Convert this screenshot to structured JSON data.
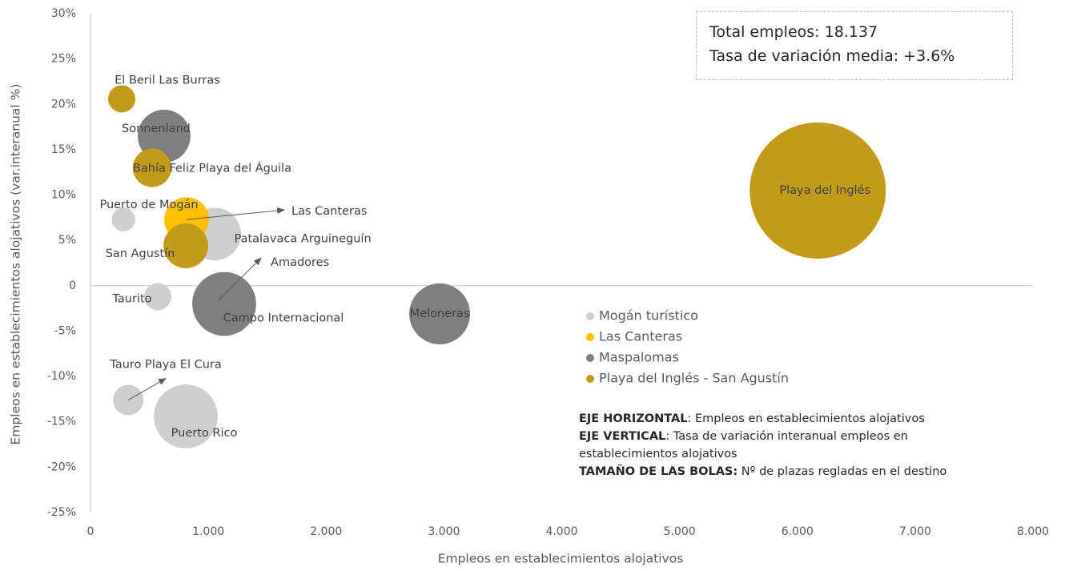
{
  "chart_data": {
    "type": "bubble",
    "xlabel": "Empleos en establecimientos alojativos",
    "ylabel": "Empleos en establecimientos alojativos (var.interanual %)",
    "xlim": [
      0,
      8000
    ],
    "ylim": [
      -25,
      30
    ],
    "xticks": [
      0,
      {
        "value": 1000,
        "label": "1.000"
      },
      {
        "value": 2000,
        "label": "2.000"
      },
      {
        "value": 3000,
        "label": "3.000"
      },
      {
        "value": 4000,
        "label": "4.000"
      },
      {
        "value": 5000,
        "label": "5.000"
      },
      {
        "value": 6000,
        "label": "6.000"
      },
      {
        "value": 7000,
        "label": "7.000"
      },
      {
        "value": 8000,
        "label": "8.000"
      }
    ],
    "yticks": [
      {
        "value": -25,
        "label": "-25%"
      },
      {
        "value": -20,
        "label": "-20%"
      },
      {
        "value": -15,
        "label": "-15%"
      },
      {
        "value": -10,
        "label": "-10%"
      },
      {
        "value": -5,
        "label": "-5%"
      },
      0,
      {
        "value": 5,
        "label": "5%"
      },
      {
        "value": 10,
        "label": "10%"
      },
      {
        "value": 15,
        "label": "15%"
      },
      {
        "value": 20,
        "label": "20%"
      },
      {
        "value": 25,
        "label": "25%"
      },
      {
        "value": 30,
        "label": "30%"
      }
    ],
    "series": [
      {
        "name": "Mogán turístico",
        "color": "#d0cfcf",
        "labels": [
          "Puerto de Mogán",
          "Patalavaca Arguineguín",
          "Taurito",
          "Amadores",
          "Tauro Playa El Cura",
          "Puerto Rico"
        ],
        "x": [
          279,
          1054,
          571,
          1081,
          320,
          809
        ],
        "values": [
          7.3,
          5.7,
          -1.2,
          -1.7,
          -12.6,
          -14.4
        ],
        "sizes": [
          1500,
          7500,
          2000,
          7000,
          2500,
          11000
        ]
      },
      {
        "name": "Las Canteras",
        "color": "#ffc000",
        "labels": [
          "Las Canteras"
        ],
        "x": [
          816
        ],
        "values": [
          7.3
        ],
        "sizes": [
          5400
        ]
      },
      {
        "name": "Maspalomas",
        "color": "#7f7f7f",
        "labels": [
          "Sonnenland",
          "Campo Internacional",
          "Meloneras"
        ],
        "x": [
          625,
          1135,
          2964
        ],
        "values": [
          16.5,
          -2.0,
          -3.1
        ],
        "sizes": [
          7500,
          11000,
          10000
        ]
      },
      {
        "name": "Playa del Inglés - San Agustín",
        "color": "#c29b1a",
        "labels": [
          "El Beril Las Burras",
          "Bahía Feliz Playa del Águila",
          "San Agustín",
          "Playa del Inglés"
        ],
        "x": [
          265,
          523,
          809,
          6173
        ],
        "values": [
          20.6,
          13.0,
          4.4,
          10.5
        ],
        "sizes": [
          2000,
          4000,
          5400,
          50000
        ]
      }
    ],
    "info": [
      "Total empleos: 18.137",
      "Tasa de variación media: +3.6%"
    ],
    "notes": [
      {
        "label": "EJE HORIZONTAL",
        "text": ": Empleos en establecimientos alojativos"
      },
      {
        "label": "EJE VERTICAL",
        "text": ": Tasa de variación interanual empleos en establecimientos alojativos"
      },
      {
        "label": "TAMAÑO DE LAS BOLAS:",
        "text": " Nº de plazas regladas en el destino"
      }
    ]
  }
}
